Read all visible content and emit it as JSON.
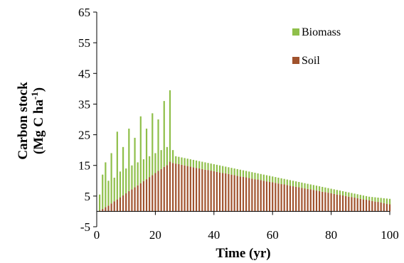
{
  "chart_data": {
    "type": "bar",
    "stacked": true,
    "xlabel": "Time (yr)",
    "ylabel_line1": "Carbon stock",
    "ylabel_line2": "(Mg C ha",
    "ylabel_sup": "-1",
    "ylabel_close": ")",
    "xlim": [
      0,
      100
    ],
    "ylim": [
      -5,
      65
    ],
    "xticks": [
      0,
      20,
      40,
      60,
      80,
      100
    ],
    "yticks": [
      -5,
      5,
      15,
      25,
      35,
      45,
      55,
      65
    ],
    "legend_position": "top-right",
    "series": [
      {
        "name": "Biomass",
        "color": "#8fbf4a"
      },
      {
        "name": "Soil",
        "color": "#a0522d"
      }
    ],
    "x": [
      1,
      2,
      3,
      4,
      5,
      6,
      7,
      8,
      9,
      10,
      11,
      12,
      13,
      14,
      15,
      16,
      17,
      18,
      19,
      20,
      21,
      22,
      23,
      24,
      25,
      26,
      27,
      28,
      29,
      30,
      31,
      32,
      33,
      34,
      35,
      36,
      37,
      38,
      39,
      40,
      41,
      42,
      43,
      44,
      45,
      46,
      47,
      48,
      49,
      50,
      51,
      52,
      53,
      54,
      55,
      56,
      57,
      58,
      59,
      60,
      61,
      62,
      63,
      64,
      65,
      66,
      67,
      68,
      69,
      70,
      71,
      72,
      73,
      74,
      75,
      76,
      77,
      78,
      79,
      80,
      81,
      82,
      83,
      84,
      85,
      86,
      87,
      88,
      89,
      90,
      91,
      92,
      93,
      94,
      95,
      96,
      97,
      98,
      99,
      100
    ],
    "soil": [
      0.3,
      0.8,
      1.4,
      1.9,
      2.6,
      3.3,
      3.9,
      4.6,
      5.2,
      5.9,
      6.6,
      7.2,
      7.9,
      8.5,
      9.2,
      9.9,
      10.5,
      11.2,
      11.8,
      12.5,
      13.2,
      13.8,
      14.5,
      15.1,
      16.2,
      15.8,
      15.6,
      15.4,
      15.2,
      15.0,
      14.8,
      14.6,
      14.4,
      14.2,
      14.0,
      13.8,
      13.6,
      13.5,
      13.3,
      13.1,
      12.9,
      12.7,
      12.5,
      12.4,
      12.2,
      12.0,
      11.8,
      11.6,
      11.4,
      11.3,
      11.1,
      10.9,
      10.7,
      10.5,
      10.4,
      10.2,
      10.0,
      9.8,
      9.6,
      9.5,
      9.3,
      9.1,
      8.9,
      8.8,
      8.6,
      8.4,
      8.2,
      8.0,
      7.9,
      7.7,
      7.5,
      7.3,
      7.2,
      7.0,
      6.8,
      6.6,
      6.4,
      6.3,
      6.1,
      5.9,
      5.7,
      5.5,
      5.4,
      5.2,
      5.0,
      4.8,
      4.7,
      4.5,
      4.3,
      4.1,
      3.9,
      3.8,
      3.6,
      3.4,
      3.2,
      3.1,
      2.9,
      2.7,
      2.5,
      2.3
    ],
    "total": [
      5.5,
      12,
      16,
      10,
      19,
      11,
      26,
      13,
      21,
      14,
      27,
      15,
      24,
      16,
      31,
      17,
      27,
      18,
      32,
      19,
      30,
      20,
      36,
      21,
      39.5,
      20,
      18,
      17.8,
      17.6,
      17.4,
      17.2,
      17.0,
      16.8,
      16.6,
      16.4,
      16.2,
      16.0,
      15.8,
      15.6,
      15.4,
      15.2,
      15.0,
      14.8,
      14.6,
      14.4,
      14.2,
      14.0,
      13.8,
      13.6,
      13.4,
      13.2,
      13.0,
      12.8,
      12.6,
      12.4,
      12.2,
      12.0,
      11.8,
      11.6,
      11.4,
      11.2,
      11.0,
      10.8,
      10.6,
      10.4,
      10.2,
      10.0,
      9.8,
      9.6,
      9.4,
      9.2,
      9.0,
      8.8,
      8.6,
      8.4,
      8.2,
      8.0,
      7.8,
      7.6,
      7.4,
      7.2,
      7.0,
      6.8,
      6.6,
      6.4,
      6.2,
      6.0,
      5.8,
      5.6,
      5.4,
      5.2,
      5.0,
      4.8,
      4.7,
      4.6,
      4.5,
      4.4,
      4.3,
      4.2,
      4.1
    ]
  }
}
